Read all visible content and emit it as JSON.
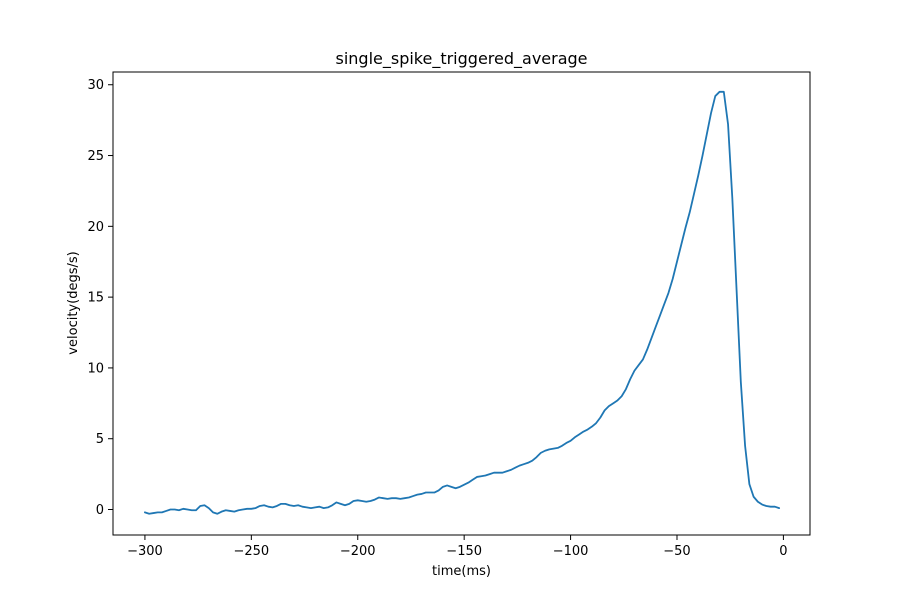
{
  "chart_data": {
    "type": "line",
    "title": "single_spike_triggered_average",
    "xlabel": "time(ms)",
    "ylabel": "velocity(degs/s)",
    "xlim": [
      -315,
      12.5
    ],
    "ylim": [
      -1.8,
      30.9
    ],
    "xticks": [
      -300,
      -250,
      -200,
      -150,
      -100,
      -50,
      0
    ],
    "xtick_labels": [
      "−300",
      "−250",
      "−200",
      "−150",
      "−100",
      "−50",
      "0"
    ],
    "yticks": [
      0,
      5,
      10,
      15,
      20,
      25,
      30
    ],
    "ytick_labels": [
      "0",
      "5",
      "10",
      "15",
      "20",
      "25",
      "30"
    ],
    "grid": false,
    "series": [
      {
        "color": "#1f77b4",
        "x": [
          -300,
          -298,
          -296,
          -294,
          -292,
          -290,
          -288,
          -286,
          -284,
          -282,
          -280,
          -278,
          -276,
          -274,
          -272,
          -270,
          -268,
          -266,
          -264,
          -262,
          -260,
          -258,
          -256,
          -254,
          -252,
          -250,
          -248,
          -246,
          -244,
          -242,
          -240,
          -238,
          -236,
          -234,
          -232,
          -230,
          -228,
          -226,
          -224,
          -222,
          -220,
          -218,
          -216,
          -214,
          -212,
          -210,
          -208,
          -206,
          -204,
          -202,
          -200,
          -198,
          -196,
          -194,
          -192,
          -190,
          -188,
          -186,
          -184,
          -182,
          -180,
          -178,
          -176,
          -174,
          -172,
          -170,
          -168,
          -166,
          -164,
          -162,
          -160,
          -158,
          -156,
          -154,
          -152,
          -150,
          -148,
          -146,
          -144,
          -142,
          -140,
          -138,
          -136,
          -134,
          -132,
          -130,
          -128,
          -126,
          -124,
          -122,
          -120,
          -118,
          -116,
          -114,
          -112,
          -110,
          -108,
          -106,
          -104,
          -102,
          -100,
          -98,
          -96,
          -94,
          -92,
          -90,
          -88,
          -86,
          -84,
          -82,
          -80,
          -78,
          -76,
          -74,
          -72,
          -70,
          -68,
          -66,
          -64,
          -62,
          -60,
          -58,
          -56,
          -54,
          -52,
          -50,
          -48,
          -46,
          -44,
          -42,
          -40,
          -38,
          -36,
          -34,
          -32,
          -30,
          -28,
          -26,
          -24,
          -22,
          -20,
          -18,
          -16,
          -14,
          -12,
          -10,
          -8,
          -6,
          -4,
          -2
        ],
        "y": [
          -0.2,
          -0.3,
          -0.25,
          -0.2,
          -0.2,
          -0.1,
          0.0,
          0.0,
          -0.05,
          0.05,
          0.0,
          -0.05,
          -0.05,
          0.25,
          0.3,
          0.1,
          -0.2,
          -0.3,
          -0.15,
          -0.05,
          -0.1,
          -0.15,
          -0.05,
          0.0,
          0.05,
          0.05,
          0.1,
          0.25,
          0.3,
          0.2,
          0.15,
          0.25,
          0.4,
          0.4,
          0.3,
          0.25,
          0.3,
          0.2,
          0.15,
          0.1,
          0.15,
          0.2,
          0.1,
          0.15,
          0.3,
          0.5,
          0.4,
          0.3,
          0.4,
          0.6,
          0.65,
          0.6,
          0.55,
          0.6,
          0.7,
          0.85,
          0.8,
          0.75,
          0.8,
          0.8,
          0.75,
          0.8,
          0.85,
          0.95,
          1.05,
          1.1,
          1.2,
          1.2,
          1.2,
          1.35,
          1.6,
          1.7,
          1.6,
          1.5,
          1.6,
          1.75,
          1.9,
          2.1,
          2.3,
          2.35,
          2.4,
          2.5,
          2.6,
          2.6,
          2.6,
          2.7,
          2.8,
          2.95,
          3.1,
          3.2,
          3.3,
          3.45,
          3.7,
          4.0,
          4.15,
          4.25,
          4.3,
          4.35,
          4.5,
          4.7,
          4.85,
          5.1,
          5.3,
          5.5,
          5.65,
          5.85,
          6.1,
          6.5,
          7.0,
          7.3,
          7.5,
          7.7,
          8.0,
          8.5,
          9.2,
          9.8,
          10.2,
          10.6,
          11.3,
          12.1,
          12.9,
          13.7,
          14.5,
          15.3,
          16.3,
          17.5,
          18.7,
          19.9,
          21.0,
          22.3,
          23.6,
          25.0,
          26.5,
          28.0,
          29.2,
          29.5,
          29.5,
          27.2,
          22.0,
          15.5,
          9.0,
          4.5,
          1.8,
          0.9,
          0.55,
          0.35,
          0.25,
          0.2,
          0.2,
          0.1
        ]
      }
    ]
  }
}
